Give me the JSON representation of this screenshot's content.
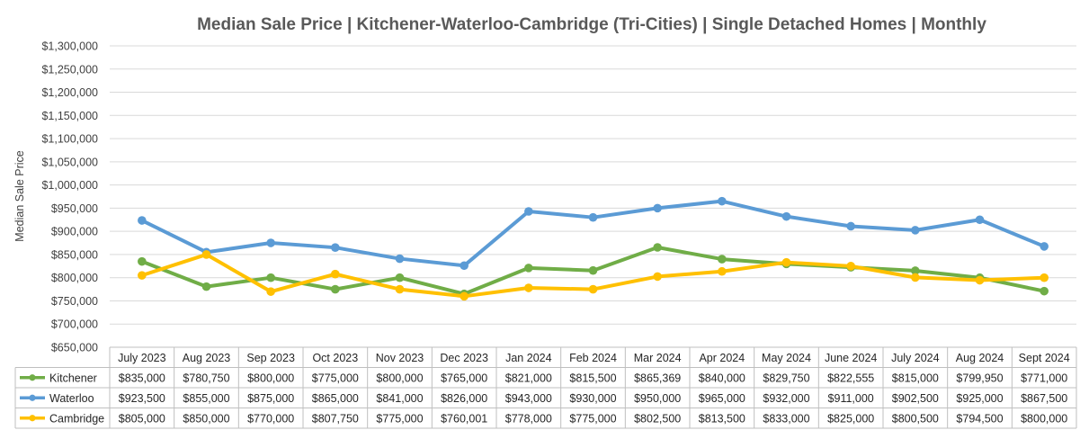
{
  "chart_data": {
    "type": "line",
    "title": "Median Sale Price | Kitchener-Waterloo-Cambridge (Tri-Cities) | Single Detached Homes | Monthly",
    "xlabel": "",
    "ylabel": "Median Sale Price",
    "ylim": [
      650000,
      1300000
    ],
    "ystep": 50000,
    "yticks": [
      "$650,000",
      "$700,000",
      "$750,000",
      "$800,000",
      "$850,000",
      "$900,000",
      "$950,000",
      "$1,000,000",
      "$1,050,000",
      "$1,100,000",
      "$1,150,000",
      "$1,200,000",
      "$1,250,000",
      "$1,300,000"
    ],
    "grid": true,
    "legend": "data-table",
    "categories": [
      "July 2023",
      "Aug 2023",
      "Sep 2023",
      "Oct 2023",
      "Nov 2023",
      "Dec 2023",
      "Jan 2024",
      "Feb 2024",
      "Mar 2024",
      "Apr 2024",
      "May 2024",
      "June 2024",
      "July 2024",
      "Aug 2024",
      "Sept 2024"
    ],
    "series": [
      {
        "name": "Kitchener",
        "color": "#70ad47",
        "values": [
          835000,
          780750,
          800000,
          775000,
          800000,
          765000,
          821000,
          815500,
          865369,
          840000,
          829750,
          822555,
          815000,
          799950,
          771000
        ],
        "labels": [
          "$835,000",
          "$780,750",
          "$800,000",
          "$775,000",
          "$800,000",
          "$765,000",
          "$821,000",
          "$815,500",
          "$865,369",
          "$840,000",
          "$829,750",
          "$822,555",
          "$815,000",
          "$799,950",
          "$771,000"
        ]
      },
      {
        "name": "Waterloo",
        "color": "#5b9bd5",
        "values": [
          923500,
          855000,
          875000,
          865000,
          841000,
          826000,
          943000,
          930000,
          950000,
          965000,
          932000,
          911000,
          902500,
          925000,
          867500
        ],
        "labels": [
          "$923,500",
          "$855,000",
          "$875,000",
          "$865,000",
          "$841,000",
          "$826,000",
          "$943,000",
          "$930,000",
          "$950,000",
          "$965,000",
          "$932,000",
          "$911,000",
          "$902,500",
          "$925,000",
          "$867,500"
        ]
      },
      {
        "name": "Cambridge",
        "color": "#ffc000",
        "values": [
          805000,
          850000,
          770000,
          807750,
          775000,
          760001,
          778000,
          775000,
          802500,
          813500,
          833000,
          825000,
          800500,
          794500,
          800000
        ],
        "labels": [
          "$805,000",
          "$850,000",
          "$770,000",
          "$807,750",
          "$775,000",
          "$760,001",
          "$778,000",
          "$775,000",
          "$802,500",
          "$813,500",
          "$833,000",
          "$825,000",
          "$800,500",
          "$794,500",
          "$800,000"
        ]
      }
    ]
  }
}
